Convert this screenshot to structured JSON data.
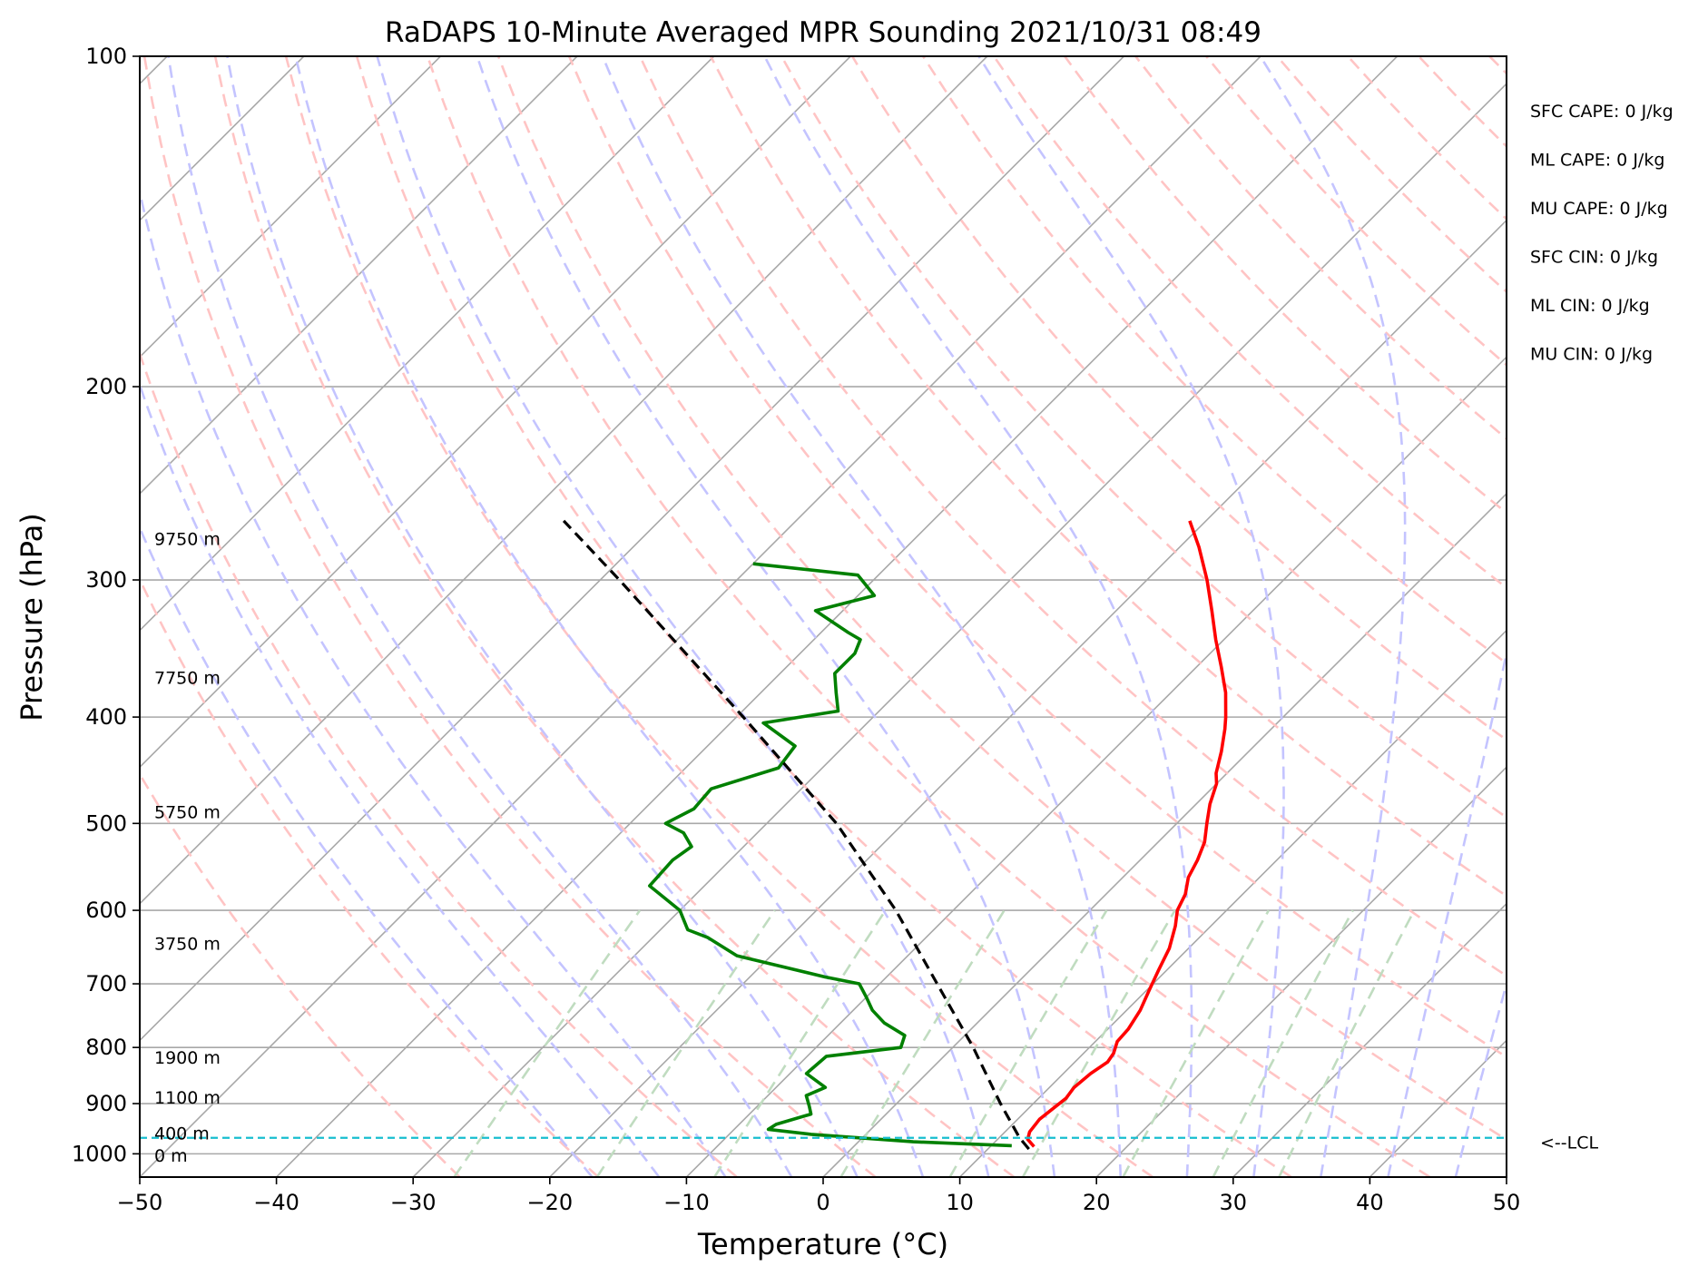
{
  "chart_data": {
    "type": "line",
    "title": "RaDAPS 10-Minute Averaged MPR Sounding 2021/10/31 08:49",
    "xlabel": "Temperature (°C)",
    "ylabel": "Pressure (hPa)",
    "xlim": [
      -50,
      50
    ],
    "ylim": [
      1050,
      100
    ],
    "y_scale": "log",
    "skew": "skew-T",
    "x_ticks": [
      -50,
      -40,
      -30,
      -20,
      -10,
      0,
      10,
      20,
      30,
      40,
      50
    ],
    "x_tick_labels": [
      "−50",
      "−40",
      "−30",
      "−20",
      "−10",
      "0",
      "10",
      "20",
      "30",
      "40",
      "50"
    ],
    "y_ticks": [
      100,
      200,
      300,
      400,
      500,
      600,
      700,
      800,
      900,
      1000
    ],
    "y_tick_labels": [
      "100",
      "200",
      "300",
      "400",
      "500",
      "600",
      "700",
      "800",
      "900",
      "1000"
    ],
    "grid": true,
    "series": [
      {
        "id": "temperature",
        "color": "#ff0000",
        "style": "solid",
        "points": [
          [
            985,
            13.2
          ],
          [
            970,
            12.2
          ],
          [
            955,
            11.8
          ],
          [
            930,
            11.6
          ],
          [
            910,
            11.8
          ],
          [
            890,
            12.0
          ],
          [
            870,
            11.8
          ],
          [
            845,
            12.0
          ],
          [
            825,
            12.4
          ],
          [
            810,
            12.2
          ],
          [
            790,
            11.6
          ],
          [
            770,
            11.5
          ],
          [
            740,
            11.0
          ],
          [
            710,
            10.2
          ],
          [
            680,
            9.4
          ],
          [
            650,
            8.6
          ],
          [
            620,
            7.4
          ],
          [
            600,
            6.4
          ],
          [
            580,
            5.8
          ],
          [
            560,
            4.8
          ],
          [
            540,
            4.2
          ],
          [
            520,
            3.4
          ],
          [
            500,
            2.2
          ],
          [
            480,
            1.0
          ],
          [
            460,
            0.0
          ],
          [
            450,
            -0.8
          ],
          [
            430,
            -2.0
          ],
          [
            410,
            -3.4
          ],
          [
            400,
            -4.2
          ],
          [
            380,
            -6.0
          ],
          [
            360,
            -8.2
          ],
          [
            340,
            -10.6
          ],
          [
            320,
            -13.0
          ],
          [
            300,
            -15.6
          ],
          [
            280,
            -18.6
          ],
          [
            265,
            -21.2
          ]
        ]
      },
      {
        "id": "dewpoint",
        "color": "#008000",
        "style": "solid",
        "points": [
          [
            983,
            11.5
          ],
          [
            975,
            4.0
          ],
          [
            960,
            -4.0
          ],
          [
            950,
            -7.5
          ],
          [
            940,
            -7.3
          ],
          [
            920,
            -5.5
          ],
          [
            905,
            -6.2
          ],
          [
            885,
            -7.2
          ],
          [
            870,
            -6.4
          ],
          [
            845,
            -8.8
          ],
          [
            815,
            -8.6
          ],
          [
            800,
            -3.8
          ],
          [
            780,
            -4.4
          ],
          [
            760,
            -6.8
          ],
          [
            740,
            -8.6
          ],
          [
            720,
            -10.0
          ],
          [
            700,
            -11.5
          ],
          [
            690,
            -14.5
          ],
          [
            660,
            -22.5
          ],
          [
            635,
            -26.0
          ],
          [
            625,
            -28.0
          ],
          [
            600,
            -30.0
          ],
          [
            570,
            -34.0
          ],
          [
            540,
            -34.2
          ],
          [
            525,
            -33.8
          ],
          [
            510,
            -35.4
          ],
          [
            500,
            -37.4
          ],
          [
            485,
            -36.4
          ],
          [
            465,
            -36.6
          ],
          [
            445,
            -33.2
          ],
          [
            425,
            -33.6
          ],
          [
            405,
            -37.6
          ],
          [
            395,
            -33.0
          ],
          [
            380,
            -34.5
          ],
          [
            365,
            -36.0
          ],
          [
            350,
            -36.0
          ],
          [
            340,
            -36.6
          ],
          [
            335,
            -38.0
          ],
          [
            320,
            -42.0
          ],
          [
            310,
            -38.8
          ],
          [
            297,
            -41.5
          ],
          [
            290,
            -50.0
          ]
        ]
      },
      {
        "id": "parcel-profile",
        "color": "#000000",
        "style": "dashed",
        "points": [
          [
            990,
            13.0
          ],
          [
            967,
            11.5
          ],
          [
            900,
            7.6
          ],
          [
            800,
            1.5
          ],
          [
            700,
            -5.8
          ],
          [
            600,
            -14.2
          ],
          [
            500,
            -24.9
          ],
          [
            400,
            -39.5
          ],
          [
            300,
            -58.6
          ],
          [
            265,
            -67.0
          ]
        ]
      }
    ],
    "lcl_pressure": 967,
    "lcl_label": "<--LCL",
    "height_labels": [
      {
        "text": "9750 m",
        "p": 275
      },
      {
        "text": "7750 m",
        "p": 368
      },
      {
        "text": "5750 m",
        "p": 488
      },
      {
        "text": "3750 m",
        "p": 643
      },
      {
        "text": "1900 m",
        "p": 817
      },
      {
        "text": "1100 m",
        "p": 888
      },
      {
        "text": "400 m",
        "p": 957
      },
      {
        "text": "0 m",
        "p": 1003
      }
    ],
    "indices": [
      {
        "label": "SFC CAPE: 0 J/kg"
      },
      {
        "label": "ML CAPE: 0 J/kg"
      },
      {
        "label": "MU CAPE: 0 J/kg"
      },
      {
        "label": "SFC CIN: 0 J/kg"
      },
      {
        "label": "ML CIN: 0 J/kg"
      },
      {
        "label": "MU CIN: 0 J/kg"
      }
    ],
    "background_lines": {
      "isotherm_color": "#a8a8a8",
      "dry_adiabat_color": "#ffc4c4",
      "moist_adiabat_color": "#c4c4ff",
      "mixing_ratio_color": "#c0dcc0",
      "lcl_color": "#17becf",
      "isotherms": [
        -150,
        -140,
        -130,
        -120,
        -110,
        -100,
        -90,
        -80,
        -70,
        -60,
        -50,
        -40,
        -30,
        -20,
        -10,
        0,
        10,
        20,
        30,
        40,
        50
      ],
      "dry_adiabats_theta_C": [
        -30,
        -20,
        -10,
        0,
        10,
        20,
        30,
        40,
        50,
        60,
        70,
        80,
        90,
        100,
        110,
        120,
        130,
        140,
        150,
        160,
        170,
        180,
        190,
        200
      ],
      "moist_adiabats_T1000_C": [
        -20,
        -15,
        -10,
        -5,
        0,
        5,
        10,
        15,
        20,
        25,
        30,
        35,
        40,
        45
      ],
      "mixing_ratios_gkg": [
        0.4,
        1,
        2,
        4,
        7,
        10,
        16,
        24,
        32
      ]
    }
  }
}
